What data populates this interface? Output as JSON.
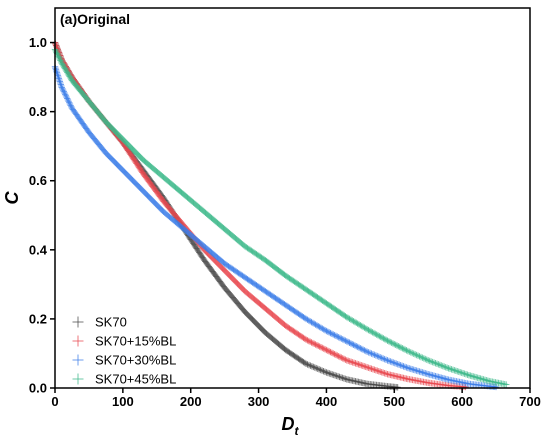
{
  "chart_data": {
    "type": "scatter",
    "panel_label": "(a)Original",
    "xlabel": "D",
    "xlabel_sub": "t",
    "ylabel": "C",
    "xlim": [
      0,
      700
    ],
    "ylim": [
      0,
      1.1
    ],
    "x_ticks": [
      0,
      100,
      200,
      300,
      400,
      500,
      600,
      700
    ],
    "y_ticks": [
      0.0,
      0.2,
      0.4,
      0.6,
      0.8,
      1.0
    ],
    "y_tick_labels": [
      "0.0",
      "0.2",
      "0.4",
      "0.6",
      "0.8",
      "1.0"
    ],
    "marker": "plus",
    "grid": false,
    "legend_position": "bottom-left",
    "series": [
      {
        "name": "SK70",
        "color": "#4a4a4a",
        "points": [
          [
            0,
            1.0
          ],
          [
            10,
            0.95
          ],
          [
            25,
            0.9
          ],
          [
            50,
            0.83
          ],
          [
            75,
            0.77
          ],
          [
            100,
            0.71
          ],
          [
            130,
            0.63
          ],
          [
            160,
            0.55
          ],
          [
            190,
            0.46
          ],
          [
            220,
            0.37
          ],
          [
            250,
            0.29
          ],
          [
            280,
            0.22
          ],
          [
            310,
            0.16
          ],
          [
            340,
            0.11
          ],
          [
            370,
            0.07
          ],
          [
            400,
            0.045
          ],
          [
            430,
            0.025
          ],
          [
            460,
            0.012
          ],
          [
            490,
            0.005
          ],
          [
            505,
            0.002
          ]
        ]
      },
      {
        "name": "SK70+15%BL",
        "color": "#e8484f",
        "points": [
          [
            0,
            1.0
          ],
          [
            10,
            0.95
          ],
          [
            25,
            0.9
          ],
          [
            50,
            0.83
          ],
          [
            75,
            0.77
          ],
          [
            100,
            0.71
          ],
          [
            130,
            0.62
          ],
          [
            160,
            0.54
          ],
          [
            190,
            0.47
          ],
          [
            220,
            0.4
          ],
          [
            250,
            0.34
          ],
          [
            280,
            0.28
          ],
          [
            310,
            0.23
          ],
          [
            340,
            0.18
          ],
          [
            370,
            0.14
          ],
          [
            400,
            0.11
          ],
          [
            430,
            0.08
          ],
          [
            460,
            0.06
          ],
          [
            490,
            0.04
          ],
          [
            520,
            0.026
          ],
          [
            550,
            0.015
          ],
          [
            580,
            0.007
          ],
          [
            605,
            0.003
          ]
        ]
      },
      {
        "name": "SK70+30%BL",
        "color": "#3c7ee8",
        "points": [
          [
            0,
            0.93
          ],
          [
            10,
            0.87
          ],
          [
            25,
            0.81
          ],
          [
            50,
            0.74
          ],
          [
            75,
            0.68
          ],
          [
            100,
            0.63
          ],
          [
            130,
            0.57
          ],
          [
            160,
            0.51
          ],
          [
            190,
            0.46
          ],
          [
            220,
            0.41
          ],
          [
            250,
            0.36
          ],
          [
            280,
            0.32
          ],
          [
            310,
            0.28
          ],
          [
            340,
            0.24
          ],
          [
            370,
            0.2
          ],
          [
            400,
            0.165
          ],
          [
            430,
            0.135
          ],
          [
            460,
            0.105
          ],
          [
            490,
            0.08
          ],
          [
            520,
            0.058
          ],
          [
            550,
            0.04
          ],
          [
            580,
            0.024
          ],
          [
            610,
            0.012
          ],
          [
            640,
            0.005
          ],
          [
            650,
            0.003
          ]
        ]
      },
      {
        "name": "SK70+45%BL",
        "color": "#3cb88a",
        "points": [
          [
            0,
            0.98
          ],
          [
            10,
            0.94
          ],
          [
            25,
            0.89
          ],
          [
            50,
            0.83
          ],
          [
            75,
            0.77
          ],
          [
            100,
            0.72
          ],
          [
            130,
            0.66
          ],
          [
            160,
            0.61
          ],
          [
            190,
            0.56
          ],
          [
            220,
            0.51
          ],
          [
            250,
            0.46
          ],
          [
            280,
            0.41
          ],
          [
            310,
            0.37
          ],
          [
            340,
            0.325
          ],
          [
            370,
            0.285
          ],
          [
            400,
            0.245
          ],
          [
            430,
            0.205
          ],
          [
            460,
            0.17
          ],
          [
            490,
            0.137
          ],
          [
            520,
            0.107
          ],
          [
            550,
            0.08
          ],
          [
            580,
            0.057
          ],
          [
            610,
            0.037
          ],
          [
            640,
            0.02
          ],
          [
            665,
            0.01
          ]
        ]
      }
    ]
  }
}
